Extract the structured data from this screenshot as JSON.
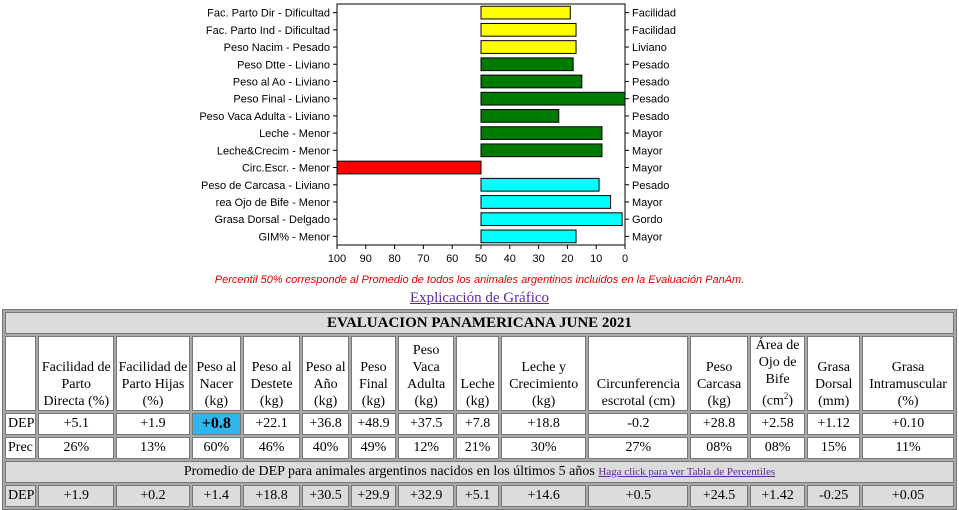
{
  "chart_data": {
    "type": "bar",
    "orientation": "horizontal",
    "xlim": [
      100,
      0
    ],
    "x_ticks": [
      "100",
      "90",
      "80",
      "70",
      "60",
      "50",
      "40",
      "30",
      "20",
      "10",
      "0"
    ],
    "center_value": 50,
    "bars": [
      {
        "label": "Fac. Parto Dir - Dificultad",
        "right_label": "Facilidad",
        "value": 19,
        "color": "#ffff00"
      },
      {
        "label": "Fac. Parto Ind - Dificultad",
        "right_label": "Facilidad",
        "value": 17,
        "color": "#ffff00"
      },
      {
        "label": "Peso Nacim - Pesado",
        "right_label": "Liviano",
        "value": 17,
        "color": "#ffff00"
      },
      {
        "label": "Peso Dtte - Liviano",
        "right_label": "Pesado",
        "value": 18,
        "color": "#007a00"
      },
      {
        "label": "Peso al Ao - Liviano",
        "right_label": "Pesado",
        "value": 15,
        "color": "#007a00"
      },
      {
        "label": "Peso Final - Liviano",
        "right_label": "Pesado",
        "value": 0,
        "color": "#007a00"
      },
      {
        "label": "Peso Vaca Adulta - Liviano",
        "right_label": "Pesado",
        "value": 23,
        "color": "#007a00"
      },
      {
        "label": "Leche - Menor",
        "right_label": "Mayor",
        "value": 8,
        "color": "#007a00"
      },
      {
        "label": "Leche&Crecim - Menor",
        "right_label": "Mayor",
        "value": 8,
        "color": "#007a00"
      },
      {
        "label": "Circ.Escr. - Menor",
        "right_label": "Mayor",
        "value": 100,
        "color": "#ff0000"
      },
      {
        "label": "Peso de Carcasa - Liviano",
        "right_label": "Pesado",
        "value": 9,
        "color": "#00ffff"
      },
      {
        "label": "rea Ojo de Bife - Menor",
        "right_label": "Mayor",
        "value": 5,
        "color": "#00ffff"
      },
      {
        "label": "Grasa Dorsal - Delgado",
        "right_label": "Gordo",
        "value": 1,
        "color": "#00ffff"
      },
      {
        "label": "GIM% - Menor",
        "right_label": "Mayor",
        "value": 17,
        "color": "#00ffff"
      }
    ]
  },
  "note": "Percentil 50% corresponde al Promedio de todos los animales argentinos incluidos en la Evaluación PanAm.",
  "explain_link": "Explicación de Gráfico",
  "table": {
    "title": "EVALUACION PANAMERICANA JUNE 2021",
    "headers": [
      "Facilidad de Parto Directa (%)",
      "Facilidad de Parto Hijas (%)",
      "Peso al Nacer (kg)",
      "Peso al Destete (kg)",
      "Peso al Año (kg)",
      "Peso Final (kg)",
      "Peso Vaca Adulta (kg)",
      "Leche (kg)",
      "Leche y Crecimiento (kg)",
      "Circunferencia escrotal (cm)",
      "Peso Carcasa (kg)",
      "Área de Ojo de Bife (cm2)",
      "Grasa Dorsal (mm)",
      "Grasa Intramuscular (%)"
    ],
    "dep_label": "DEP",
    "dep": [
      "+5.1",
      "+1.9",
      "+0.8",
      "+22.1",
      "+36.8",
      "+48.9",
      "+37.5",
      "+7.8",
      "+18.8",
      "-0.2",
      "+28.8",
      "+2.58",
      "+1.12",
      "+0.10"
    ],
    "prec_label": "Prec",
    "prec": [
      "26%",
      "13%",
      "60%",
      "46%",
      "40%",
      "49%",
      "12%",
      "21%",
      "30%",
      "27%",
      "08%",
      "08%",
      "15%",
      "11%"
    ],
    "avg_caption": "Promedio de DEP para animales argentinos nacidos en los últimos 5 años",
    "avg_link": "Haga click para ver Tabla de Percentiles",
    "avg_label": "DEP",
    "avg": [
      "+1.9",
      "+0.2",
      "+1.4",
      "+18.8",
      "+30.5",
      "+29.9",
      "+32.9",
      "+5.1",
      "+14.6",
      "+0.5",
      "+24.5",
      "+1.42",
      "-0.25",
      "+0.05"
    ]
  },
  "colors": {
    "highlight": "#2fb6ec",
    "grid_bg": "#dcdcdc",
    "note": "#e00000"
  }
}
